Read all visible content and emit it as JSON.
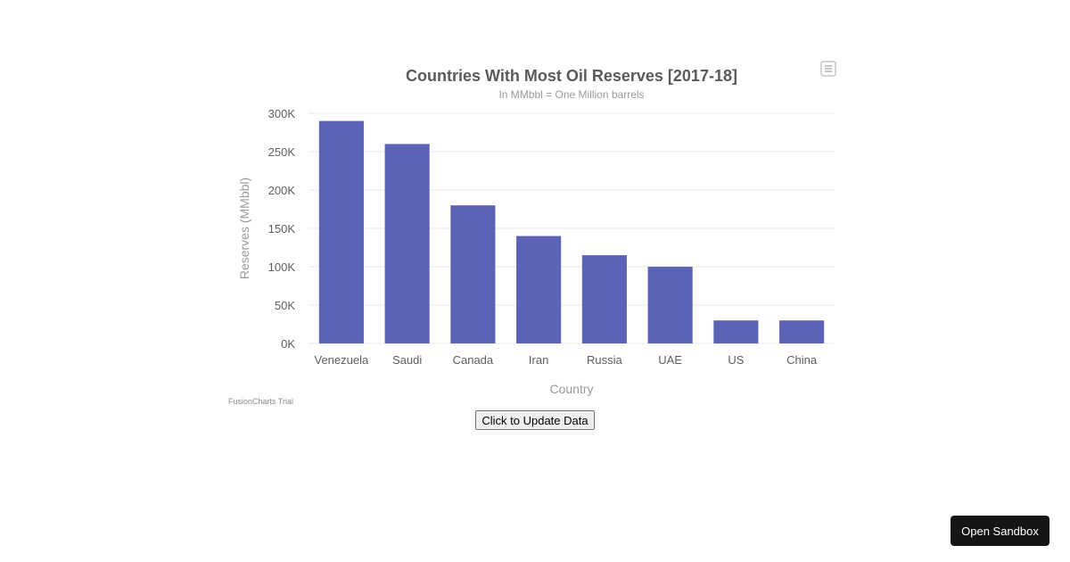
{
  "chart_data": {
    "type": "bar",
    "title": "Countries With Most Oil Reserves [2017-18]",
    "subtitle": "In MMbbl = One Million barrels",
    "xlabel": "Country",
    "ylabel": "Reserves (MMbbl)",
    "categories": [
      "Venezuela",
      "Saudi",
      "Canada",
      "Iran",
      "Russia",
      "UAE",
      "US",
      "China"
    ],
    "values": [
      290000,
      260000,
      180000,
      140000,
      115000,
      100000,
      30000,
      30000
    ],
    "ylim": [
      0,
      300000
    ],
    "yticks": [
      0,
      50000,
      100000,
      150000,
      200000,
      250000,
      300000
    ],
    "ytick_labels": [
      "0K",
      "50K",
      "100K",
      "150K",
      "200K",
      "250K",
      "300K"
    ],
    "grid": true,
    "bar_color": "#5c62b5"
  },
  "watermark": "FusionCharts Trial",
  "menu_icon": "hamburger-menu-icon",
  "buttons": {
    "update_label": "Click to Update Data",
    "sandbox_label": "Open Sandbox"
  }
}
